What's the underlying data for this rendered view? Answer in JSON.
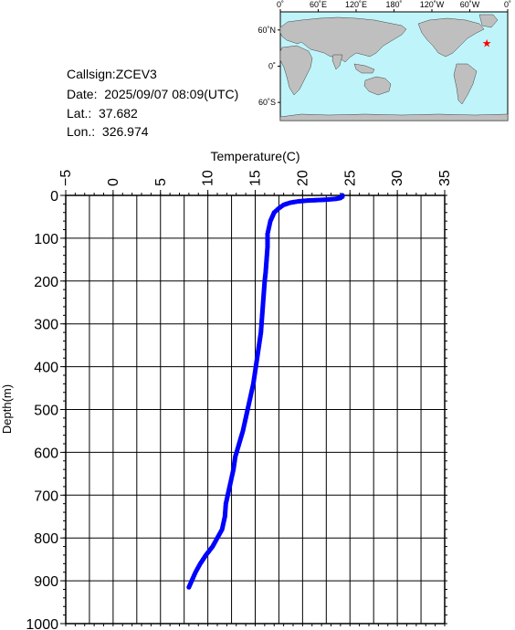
{
  "info": {
    "callsign": "Callsign:ZCEV3",
    "date": "Date:  2025/09/07 08:09(UTC)",
    "lat": "Lat.:  37.682",
    "lon": "Lon.:  326.974"
  },
  "map": {
    "lon_ticks": [
      "0˚",
      "60˚E",
      "120˚E",
      "180˚",
      "120˚W",
      "60˚W",
      "0˚"
    ],
    "lat_ticks": [
      "60˚N",
      "0˚",
      "60˚S"
    ],
    "station": {
      "lon": 326.974,
      "lat": 37.682
    },
    "ocean_color": "#bff5fa",
    "land_color": "#bfbfbf",
    "marker_color": "#ff0000"
  },
  "chart_data": {
    "type": "scatter",
    "title": "",
    "xlabel": "Temperature(C)",
    "ylabel": "Depth(m)",
    "xlim": [
      -5,
      35
    ],
    "ylim": [
      1000,
      0
    ],
    "x_ticks": [
      -5,
      0,
      5,
      10,
      15,
      20,
      25,
      30,
      35
    ],
    "y_ticks": [
      0,
      100,
      200,
      300,
      400,
      500,
      600,
      700,
      800,
      900,
      1000
    ],
    "x_tick_labels": [
      "−5",
      "0",
      "5",
      "10",
      "15",
      "20",
      "25",
      "30",
      "35"
    ],
    "y_tick_labels": [
      "0",
      "100",
      "200",
      "300",
      "400",
      "500",
      "600",
      "700",
      "800",
      "900",
      "1000"
    ],
    "grid": true,
    "series_color": "#0000ff",
    "points": [
      [
        24.2,
        0
      ],
      [
        24.2,
        3
      ],
      [
        24.0,
        6
      ],
      [
        23.5,
        8
      ],
      [
        22.5,
        10
      ],
      [
        21.5,
        11
      ],
      [
        20.5,
        12
      ],
      [
        19.5,
        14
      ],
      [
        18.7,
        17
      ],
      [
        18.0,
        22
      ],
      [
        17.5,
        30
      ],
      [
        17.0,
        40
      ],
      [
        16.8,
        50
      ],
      [
        16.6,
        60
      ],
      [
        16.5,
        70
      ],
      [
        16.4,
        80
      ],
      [
        16.3,
        90
      ],
      [
        16.3,
        100
      ],
      [
        16.3,
        120
      ],
      [
        16.2,
        150
      ],
      [
        16.1,
        180
      ],
      [
        16.0,
        200
      ],
      [
        15.9,
        230
      ],
      [
        15.8,
        260
      ],
      [
        15.7,
        290
      ],
      [
        15.6,
        320
      ],
      [
        15.4,
        350
      ],
      [
        15.2,
        380
      ],
      [
        15.0,
        410
      ],
      [
        14.8,
        440
      ],
      [
        14.5,
        470
      ],
      [
        14.2,
        500
      ],
      [
        14.0,
        520
      ],
      [
        13.7,
        550
      ],
      [
        13.3,
        580
      ],
      [
        12.9,
        610
      ],
      [
        12.7,
        640
      ],
      [
        12.5,
        660
      ],
      [
        12.2,
        690
      ],
      [
        11.9,
        720
      ],
      [
        11.8,
        750
      ],
      [
        11.5,
        780
      ],
      [
        11.0,
        800
      ],
      [
        10.5,
        820
      ],
      [
        9.8,
        840
      ],
      [
        9.2,
        860
      ],
      [
        8.7,
        880
      ],
      [
        8.3,
        900
      ],
      [
        8.0,
        915
      ]
    ]
  }
}
